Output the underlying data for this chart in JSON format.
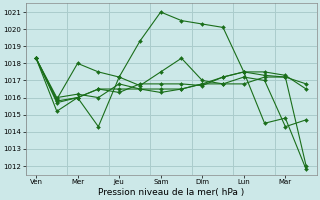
{
  "xlabel": "Pression niveau de la mer( hPa )",
  "background_color": "#cce8e8",
  "grid_color": "#aacccc",
  "line_color": "#1a6e1a",
  "ylim": [
    1011.5,
    1021.5
  ],
  "yticks": [
    1012,
    1013,
    1014,
    1015,
    1016,
    1017,
    1018,
    1019,
    1020,
    1021
  ],
  "day_labels": [
    "Ven",
    "Mer",
    "Jeu",
    "Sam",
    "Dim",
    "Lun",
    "Mar"
  ],
  "day_tick_positions": [
    0.5,
    2.5,
    4.5,
    6.5,
    8.5,
    10.5,
    12.5
  ],
  "day_vline_positions": [
    0,
    2,
    4,
    6,
    8,
    10,
    12,
    14
  ],
  "xlim": [
    0,
    14
  ],
  "series": [
    {
      "x": [
        0.5,
        1.5,
        2.5,
        3.5,
        4.5,
        5.5,
        6.5,
        7.5,
        8.5,
        9.5,
        10.5,
        11.5,
        12.5,
        13.5
      ],
      "y": [
        1018.3,
        1015.2,
        1016.0,
        1014.3,
        1017.2,
        1019.3,
        1021.0,
        1020.5,
        1020.3,
        1020.1,
        1017.5,
        1014.5,
        1014.8,
        1011.8
      ]
    },
    {
      "x": [
        0.5,
        1.5,
        2.5,
        3.5,
        4.5,
        5.5,
        6.5,
        7.5,
        8.5,
        9.5,
        10.5,
        11.5,
        12.5,
        13.5
      ],
      "y": [
        1018.3,
        1015.9,
        1018.0,
        1017.5,
        1017.2,
        1016.7,
        1017.5,
        1018.3,
        1017.0,
        1016.8,
        1017.2,
        1017.0,
        1014.3,
        1014.7
      ]
    },
    {
      "x": [
        0.5,
        1.5,
        2.5,
        3.5,
        4.5,
        5.5,
        6.5,
        7.5,
        8.5,
        9.5,
        10.5,
        11.5,
        12.5,
        13.5
      ],
      "y": [
        1018.3,
        1015.8,
        1016.0,
        1016.5,
        1016.3,
        1016.8,
        1016.8,
        1016.8,
        1016.7,
        1017.2,
        1017.5,
        1017.5,
        1017.3,
        1016.5
      ]
    },
    {
      "x": [
        0.5,
        1.5,
        2.5,
        3.5,
        4.5,
        5.5,
        6.5,
        7.5,
        8.5,
        9.5,
        10.5,
        11.5,
        12.5,
        13.5
      ],
      "y": [
        1018.3,
        1016.0,
        1016.2,
        1016.0,
        1016.8,
        1016.5,
        1016.3,
        1016.5,
        1016.8,
        1017.2,
        1017.5,
        1017.3,
        1017.2,
        1016.8
      ]
    },
    {
      "x": [
        0.5,
        1.5,
        2.5,
        3.5,
        4.5,
        5.5,
        6.5,
        7.5,
        8.5,
        9.5,
        10.5,
        11.5,
        12.5,
        13.5
      ],
      "y": [
        1018.3,
        1015.7,
        1016.0,
        1016.5,
        1016.5,
        1016.5,
        1016.5,
        1016.5,
        1016.8,
        1016.8,
        1016.8,
        1017.2,
        1017.2,
        1012.0
      ]
    }
  ]
}
